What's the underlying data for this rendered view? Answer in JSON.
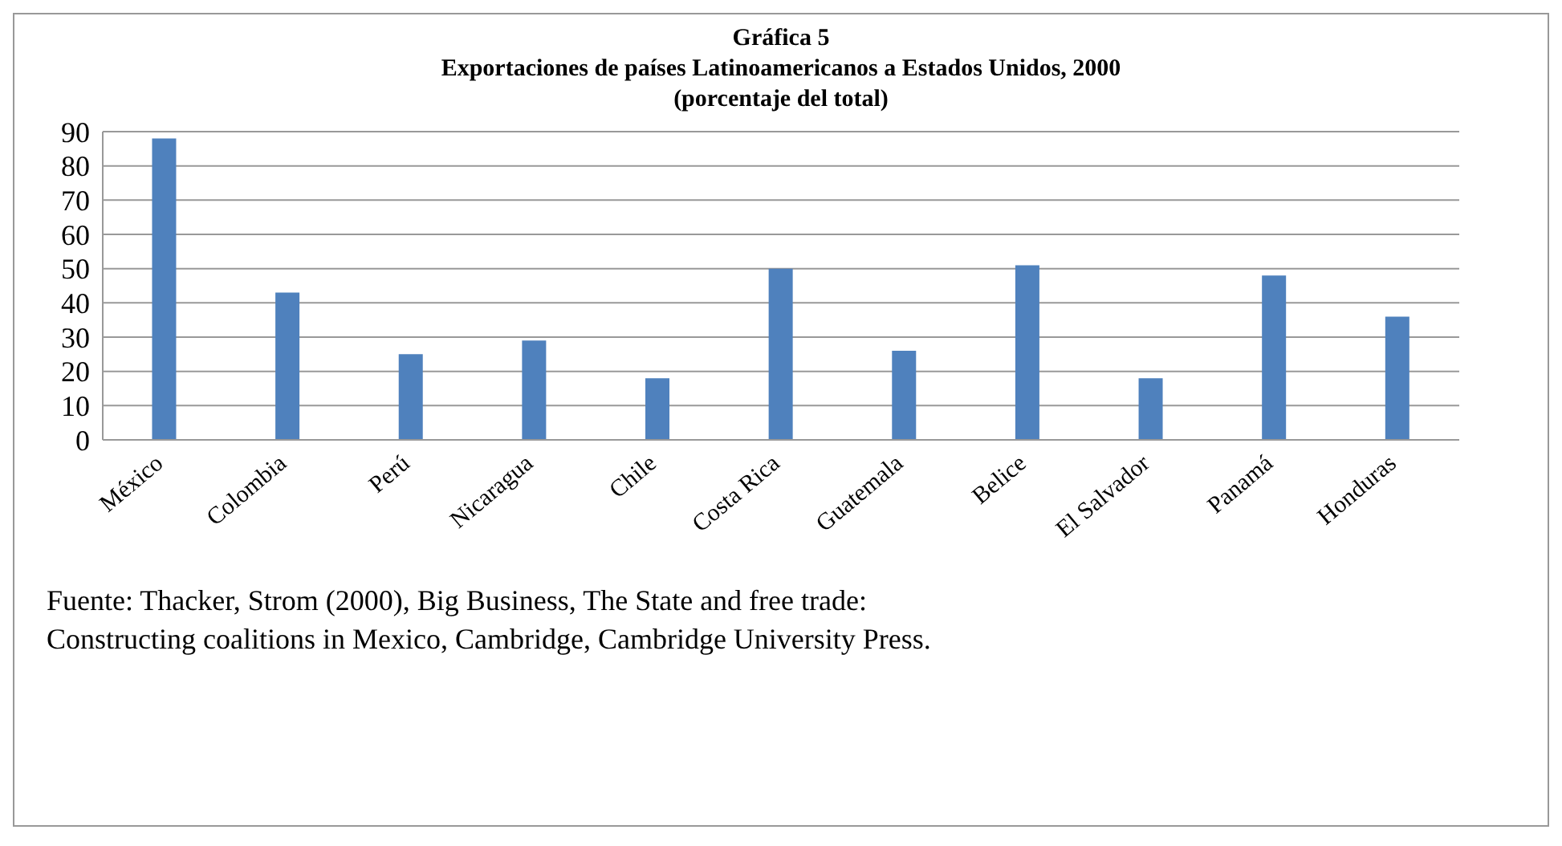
{
  "chart_data": {
    "type": "bar",
    "title": "Gráfica 5",
    "subtitle": "Exportaciones de países Latinoamericanos a Estados Unidos, 2000\n(porcentaje del total)",
    "categories": [
      "México",
      "Colombia",
      "Perú",
      "Nicaragua",
      "Chile",
      "Costa Rica",
      "Guatemala",
      "Belice",
      "El Salvador",
      "Panamá",
      "Honduras"
    ],
    "values": [
      88,
      43,
      25,
      29,
      18,
      50,
      26,
      51,
      18,
      48,
      36
    ],
    "color": "#4f81bd",
    "ylim": [
      0,
      90
    ],
    "yticks": [
      0,
      10,
      20,
      30,
      40,
      50,
      60,
      70,
      80,
      90
    ],
    "grid": "y",
    "annotations": [
      "Fuente: Thacker, Strom (2000), Big Business, The State and free trade:",
      "Constructing coalitions in Mexico, Cambridge, Cambridge University Press."
    ]
  }
}
